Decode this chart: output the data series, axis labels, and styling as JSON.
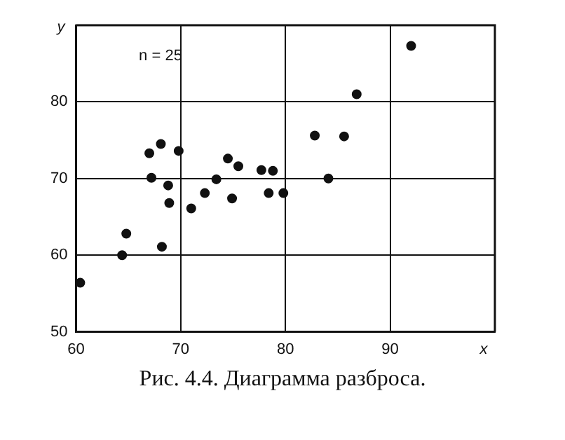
{
  "chart_data": {
    "type": "scatter",
    "title": "Рис. 4.4. Диаграмма разброса.",
    "xlabel": "x",
    "ylabel": "y",
    "annotations": [
      "n = 25"
    ],
    "x": [
      60.4,
      64.4,
      64.8,
      67,
      67.2,
      68.1,
      68.2,
      68.8,
      68.9,
      69.8,
      71,
      72.3,
      73.4,
      74.5,
      74.9,
      75.5,
      77.7,
      78.8,
      78.4,
      79.8,
      82.8,
      84.1,
      85.6,
      86.8,
      92
    ],
    "series": [
      {
        "color": "#111111",
        "values": [
          56.4,
          60,
          62.8,
          73.3,
          70.1,
          74.5,
          61.1,
          69.1,
          66.8,
          73.6,
          66.1,
          68.1,
          69.9,
          72.6,
          67.4,
          71.6,
          71.1,
          71,
          68.1,
          68.1,
          75.6,
          70,
          75.5,
          81,
          87.3
        ]
      }
    ],
    "xlim": [
      60,
      100
    ],
    "ylim": [
      50,
      90
    ],
    "xticks": [
      60,
      70,
      80,
      90
    ],
    "yticks": [
      50,
      60,
      70,
      80
    ],
    "grid": true,
    "marker": "circle",
    "legend": false
  }
}
